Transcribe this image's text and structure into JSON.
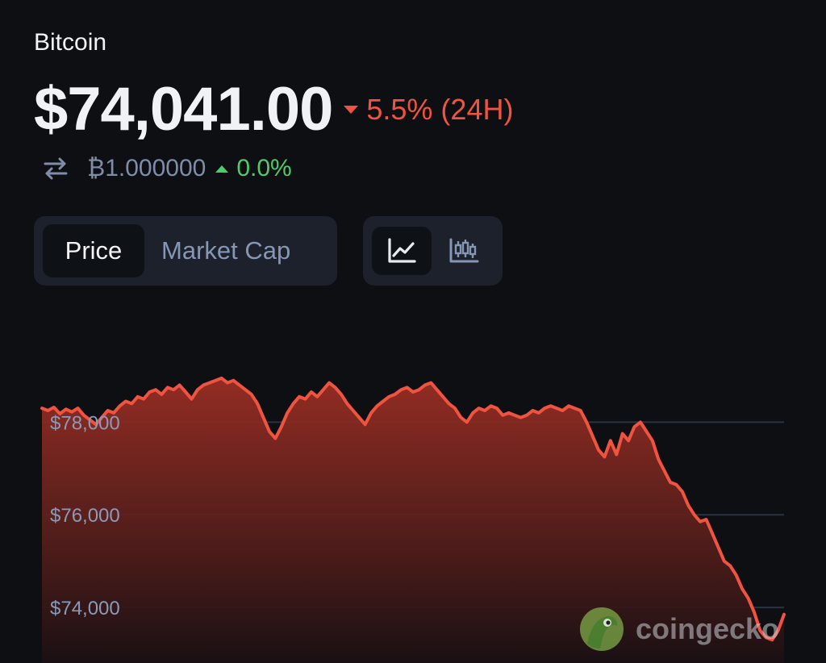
{
  "header": {
    "coin_name": "Bitcoin",
    "price": "$74,041.00",
    "change_24h": "5.5% (24H)",
    "btc_value": "₿1.000000",
    "btc_change": "0.0%"
  },
  "tabs": [
    {
      "label": "Price",
      "selected": true
    },
    {
      "label": "Market Cap",
      "selected": false
    }
  ],
  "view_toggle": {
    "selected": "line",
    "icons": [
      "line-chart-icon",
      "candlestick-icon"
    ]
  },
  "colors": {
    "background": "#0d0f13",
    "down": "#f0533f",
    "up": "#4fcb6b",
    "muted": "#7f8da8",
    "panel": "#1c212b"
  },
  "watermark": {
    "text": "coingecko"
  },
  "chart_data": {
    "type": "area",
    "series": [
      {
        "values": [
          78300,
          78250,
          78320,
          78180,
          78280,
          78220,
          78300,
          78150,
          78050,
          77950,
          78100,
          78250,
          78200,
          78350,
          78450,
          78400,
          78550,
          78500,
          78650,
          78700,
          78600,
          78750,
          78700,
          78800,
          78650,
          78500,
          78700,
          78800,
          78850,
          78900,
          78950,
          78850,
          78900,
          78800,
          78700,
          78600,
          78400,
          78100,
          77800,
          77650,
          77900,
          78200,
          78400,
          78550,
          78500,
          78650,
          78550,
          78700,
          78850,
          78750,
          78600,
          78400,
          78250,
          78100,
          77950,
          78200,
          78350,
          78450,
          78550,
          78600,
          78700,
          78750,
          78650,
          78700,
          78800,
          78850,
          78700,
          78550,
          78400,
          78300,
          78100,
          78000,
          78200,
          78300,
          78250,
          78350,
          78300,
          78150,
          78200,
          78150,
          78100,
          78150,
          78250,
          78200,
          78300,
          78350,
          78300,
          78250,
          78350,
          78300,
          78250,
          78000,
          77700,
          77400,
          77250,
          77600,
          77300,
          77750,
          77600,
          77900,
          78000,
          77800,
          77600,
          77200,
          76950,
          76700,
          76650,
          76500,
          76200,
          76000,
          75850,
          75900,
          75600,
          75300,
          75000,
          74900,
          74700,
          74400,
          74200,
          73900,
          73500,
          73350,
          73300,
          73500,
          73850
        ]
      }
    ],
    "ylim": [
      72800,
      79800
    ],
    "yticks": [
      "$78,000",
      "$76,000",
      "$74,000"
    ],
    "ytick_values": [
      78000,
      76000,
      74000
    ],
    "grid": true
  }
}
